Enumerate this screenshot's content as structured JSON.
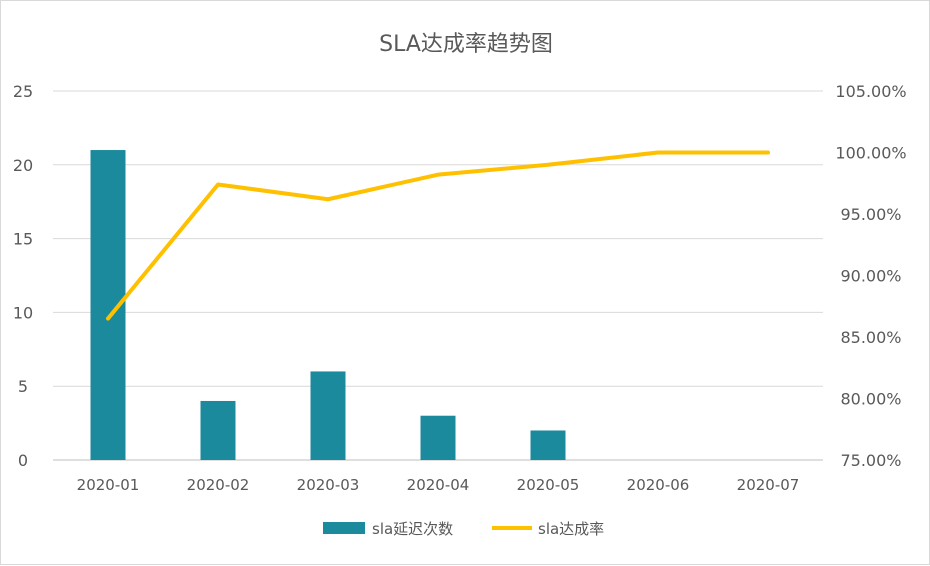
{
  "chart_data": {
    "type": "bar+line",
    "title": "SLA达成率趋势图",
    "categories": [
      "2020-01",
      "2020-02",
      "2020-03",
      "2020-04",
      "2020-05",
      "2020-06",
      "2020-07"
    ],
    "series": [
      {
        "name": "sla延迟次数",
        "type": "bar",
        "axis": "left",
        "color": "#1b8a9d",
        "values": [
          21,
          4,
          6,
          3,
          2,
          0,
          0
        ]
      },
      {
        "name": "sla达成率",
        "type": "line",
        "axis": "right",
        "color": "#ffc000",
        "values": [
          86.5,
          97.4,
          96.2,
          98.2,
          99.0,
          100.0,
          100.0
        ]
      }
    ],
    "y_left": {
      "min": 0,
      "max": 25,
      "ticks": [
        "0",
        "5",
        "10",
        "15",
        "20",
        "25"
      ]
    },
    "y_right": {
      "min": 75,
      "max": 105,
      "ticks": [
        "75.00%",
        "80.00%",
        "85.00%",
        "90.00%",
        "95.00%",
        "100.00%",
        "105.00%"
      ]
    },
    "grid": true,
    "legend": "bottom"
  }
}
